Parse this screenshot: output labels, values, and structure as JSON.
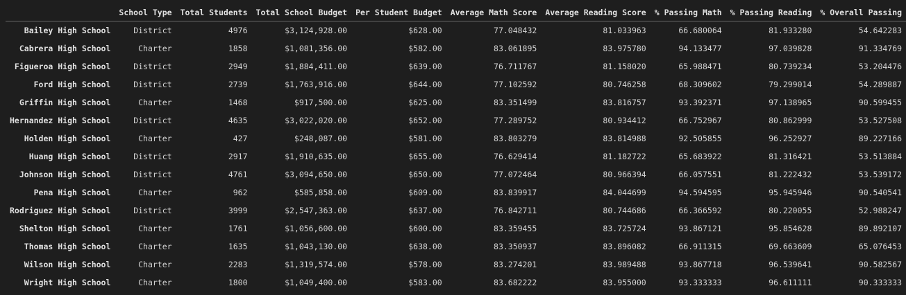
{
  "table": {
    "columns": [
      "School Type",
      "Total Students",
      "Total School Budget",
      "Per Student Budget",
      "Average Math Score",
      "Average Reading Score",
      "% Passing Math",
      "% Passing Reading",
      "% Overall Passing"
    ],
    "rows": [
      {
        "school": "Bailey High School",
        "cells": [
          "District",
          "4976",
          "$3,124,928.00",
          "$628.00",
          "77.048432",
          "81.033963",
          "66.680064",
          "81.933280",
          "54.642283"
        ]
      },
      {
        "school": "Cabrera High School",
        "cells": [
          "Charter",
          "1858",
          "$1,081,356.00",
          "$582.00",
          "83.061895",
          "83.975780",
          "94.133477",
          "97.039828",
          "91.334769"
        ]
      },
      {
        "school": "Figueroa High School",
        "cells": [
          "District",
          "2949",
          "$1,884,411.00",
          "$639.00",
          "76.711767",
          "81.158020",
          "65.988471",
          "80.739234",
          "53.204476"
        ]
      },
      {
        "school": "Ford High School",
        "cells": [
          "District",
          "2739",
          "$1,763,916.00",
          "$644.00",
          "77.102592",
          "80.746258",
          "68.309602",
          "79.299014",
          "54.289887"
        ]
      },
      {
        "school": "Griffin High School",
        "cells": [
          "Charter",
          "1468",
          "$917,500.00",
          "$625.00",
          "83.351499",
          "83.816757",
          "93.392371",
          "97.138965",
          "90.599455"
        ]
      },
      {
        "school": "Hernandez High School",
        "cells": [
          "District",
          "4635",
          "$3,022,020.00",
          "$652.00",
          "77.289752",
          "80.934412",
          "66.752967",
          "80.862999",
          "53.527508"
        ]
      },
      {
        "school": "Holden High School",
        "cells": [
          "Charter",
          "427",
          "$248,087.00",
          "$581.00",
          "83.803279",
          "83.814988",
          "92.505855",
          "96.252927",
          "89.227166"
        ]
      },
      {
        "school": "Huang High School",
        "cells": [
          "District",
          "2917",
          "$1,910,635.00",
          "$655.00",
          "76.629414",
          "81.182722",
          "65.683922",
          "81.316421",
          "53.513884"
        ]
      },
      {
        "school": "Johnson High School",
        "cells": [
          "District",
          "4761",
          "$3,094,650.00",
          "$650.00",
          "77.072464",
          "80.966394",
          "66.057551",
          "81.222432",
          "53.539172"
        ]
      },
      {
        "school": "Pena High School",
        "cells": [
          "Charter",
          "962",
          "$585,858.00",
          "$609.00",
          "83.839917",
          "84.044699",
          "94.594595",
          "95.945946",
          "90.540541"
        ]
      },
      {
        "school": "Rodriguez High School",
        "cells": [
          "District",
          "3999",
          "$2,547,363.00",
          "$637.00",
          "76.842711",
          "80.744686",
          "66.366592",
          "80.220055",
          "52.988247"
        ]
      },
      {
        "school": "Shelton High School",
        "cells": [
          "Charter",
          "1761",
          "$1,056,600.00",
          "$600.00",
          "83.359455",
          "83.725724",
          "93.867121",
          "95.854628",
          "89.892107"
        ]
      },
      {
        "school": "Thomas High School",
        "cells": [
          "Charter",
          "1635",
          "$1,043,130.00",
          "$638.00",
          "83.350937",
          "83.896082",
          "66.911315",
          "69.663609",
          "65.076453"
        ]
      },
      {
        "school": "Wilson High School",
        "cells": [
          "Charter",
          "2283",
          "$1,319,574.00",
          "$578.00",
          "83.274201",
          "83.989488",
          "93.867718",
          "96.539641",
          "90.582567"
        ]
      },
      {
        "school": "Wright High School",
        "cells": [
          "Charter",
          "1800",
          "$1,049,400.00",
          "$583.00",
          "83.682222",
          "83.955000",
          "93.333333",
          "96.611111",
          "90.333333"
        ]
      }
    ]
  }
}
